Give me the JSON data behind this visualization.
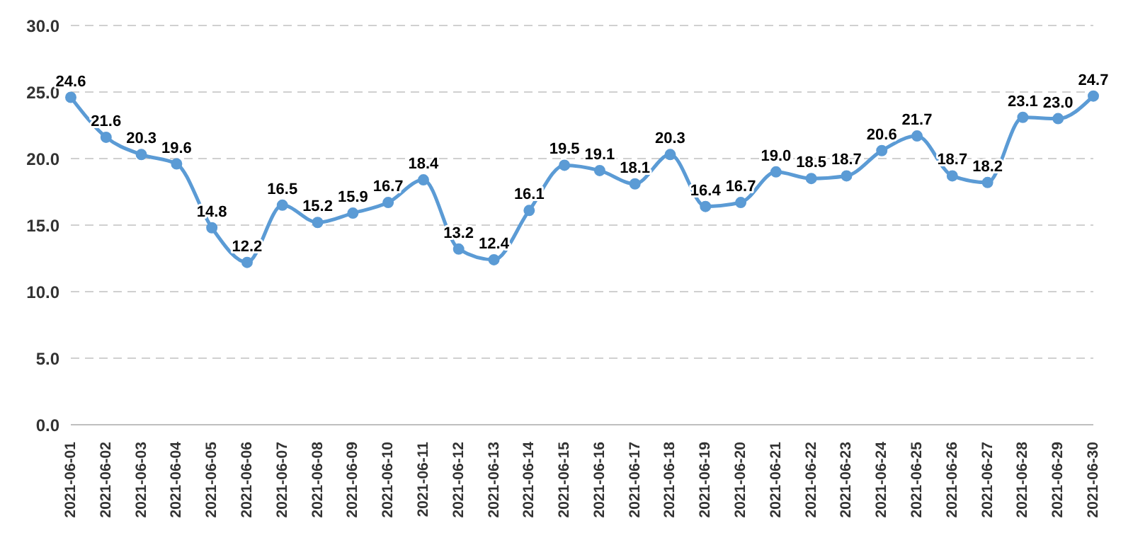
{
  "chart_data": {
    "type": "line",
    "categories": [
      "2021-06-01",
      "2021-06-02",
      "2021-06-03",
      "2021-06-04",
      "2021-06-05",
      "2021-06-06",
      "2021-06-07",
      "2021-06-08",
      "2021-06-09",
      "2021-06-10",
      "2021-06-11",
      "2021-06-12",
      "2021-06-13",
      "2021-06-14",
      "2021-06-15",
      "2021-06-16",
      "2021-06-17",
      "2021-06-18",
      "2021-06-19",
      "2021-06-20",
      "2021-06-21",
      "2021-06-22",
      "2021-06-23",
      "2021-06-24",
      "2021-06-25",
      "2021-06-26",
      "2021-06-27",
      "2021-06-28",
      "2021-06-29",
      "2021-06-30"
    ],
    "series": [
      {
        "color": "#5b9bd5",
        "values": [
          24.6,
          21.6,
          20.3,
          19.6,
          14.8,
          12.2,
          16.5,
          15.2,
          15.9,
          16.7,
          18.4,
          13.2,
          12.4,
          16.1,
          19.5,
          19.1,
          18.1,
          20.3,
          16.4,
          16.7,
          19.0,
          18.5,
          18.7,
          20.6,
          21.7,
          18.7,
          18.2,
          23.1,
          23.0,
          24.7
        ],
        "value_labels": [
          "24.6",
          "21.6",
          "20.3",
          "19.6",
          "14.8",
          "12.2",
          "16.5",
          "15.2",
          "15.9",
          "16.7",
          "18.4",
          "13.2",
          "12.4",
          "16.1",
          "19.5",
          "19.1",
          "18.1",
          "20.3",
          "16.4",
          "16.7",
          "19.0",
          "18.5",
          "18.7",
          "20.6",
          "21.7",
          "18.7",
          "18.2",
          "23.1",
          "23.0",
          "24.7"
        ]
      }
    ],
    "ylim": [
      0,
      30
    ],
    "yticks": [
      {
        "value": 0,
        "label": "0.0"
      },
      {
        "value": 5,
        "label": "5.0"
      },
      {
        "value": 10,
        "label": "10.0"
      },
      {
        "value": 15,
        "label": "15.0"
      },
      {
        "value": 20,
        "label": "20.0"
      },
      {
        "value": 25,
        "label": "25.0"
      },
      {
        "value": 30,
        "label": "30.0"
      }
    ],
    "grid": "y",
    "marker": "circle",
    "line_style": "solid",
    "legend": false
  }
}
